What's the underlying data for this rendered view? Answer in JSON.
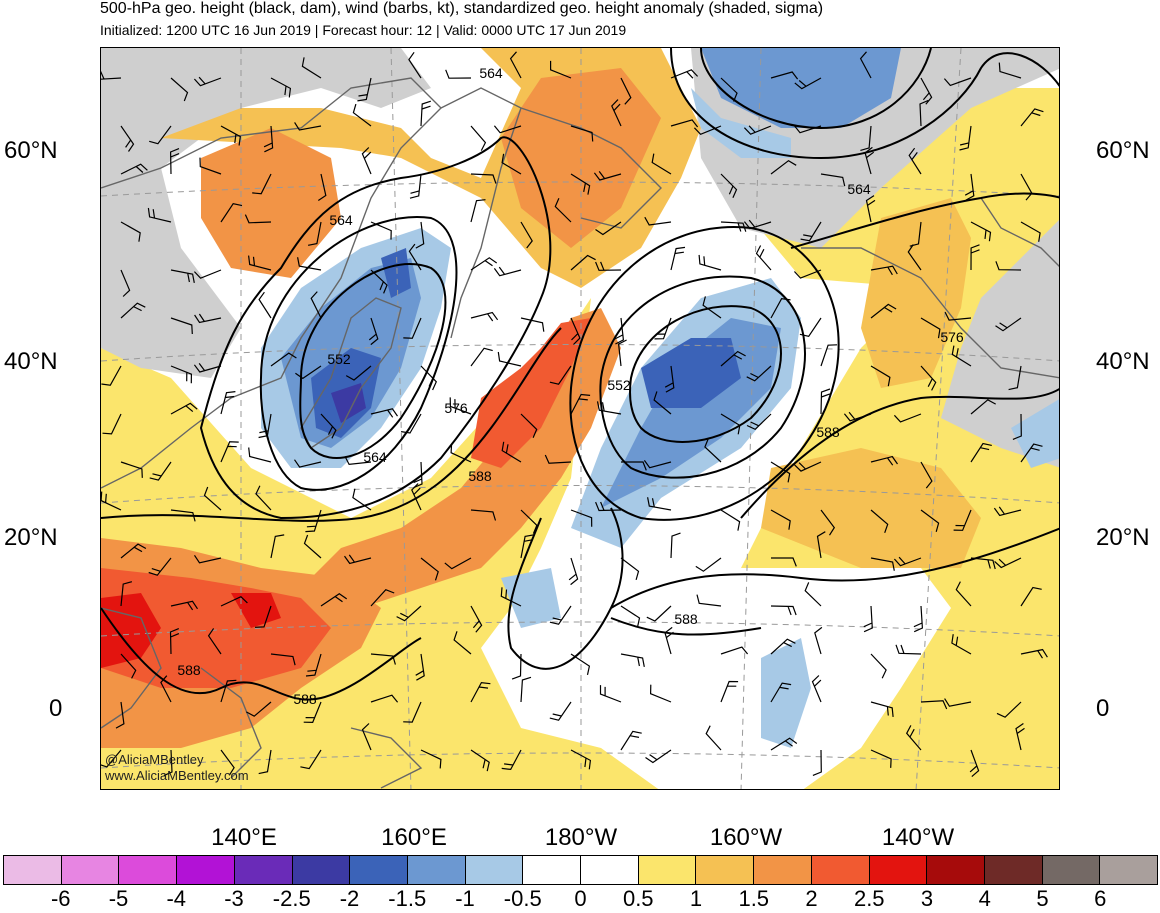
{
  "header": {
    "title": "500-hPa geo. height (black, dam), wind (barbs, kt), standardized geo. height anomaly (shaded, sigma)",
    "subtitle": "Initialized: 1200 UTC 16 Jun 2019 | Forecast hour: 12 | Valid: 0000 UTC 17 Jun 2019"
  },
  "map": {
    "lat_labels_left": [
      "60°N",
      "40°N",
      "20°N",
      "0"
    ],
    "lat_labels_right": [
      "60°N",
      "40°N",
      "20°N",
      "0"
    ],
    "lon_labels": [
      "140°E",
      "160°E",
      "180°W",
      "160°W",
      "140°W"
    ],
    "contour_labels": [
      "564",
      "564",
      "564",
      "552",
      "552",
      "564",
      "576",
      "588",
      "588",
      "576",
      "588",
      "588",
      "588"
    ],
    "watermark": [
      "@AliciaMBentley",
      "www.AliciaMBentley.com"
    ]
  },
  "colorbar": {
    "labels": [
      "-6",
      "-5",
      "-4",
      "-3",
      "-2.5",
      "-2",
      "-1.5",
      "-1",
      "-0.5",
      "0",
      "0.5",
      "1",
      "1.5",
      "2",
      "2.5",
      "3",
      "4",
      "5",
      "6"
    ],
    "colors": [
      "#ebbbe6",
      "#e785e2",
      "#dc4bdb",
      "#b212d6",
      "#6a2bb8",
      "#3c3aa3",
      "#3b63b8",
      "#6c98d1",
      "#a7c9e6",
      "#ffffff",
      "#ffffff",
      "#fbe56c",
      "#f5c153",
      "#f29446",
      "#f15a31",
      "#e3140f",
      "#a60b0b",
      "#6e2a27",
      "#746965",
      "#a99f9c"
    ]
  },
  "anomaly_colors": {
    "grey": "#cfcfcf",
    "yellow": "#fbe56c",
    "orange_light": "#f5c153",
    "orange": "#f29446",
    "red_orange": "#f15a31",
    "red": "#e3140f",
    "blue_light": "#a7c9e6",
    "blue": "#6c98d1",
    "blue_mid": "#3b63b8",
    "blue_dark": "#3c3aa3",
    "coast": "#666666"
  }
}
